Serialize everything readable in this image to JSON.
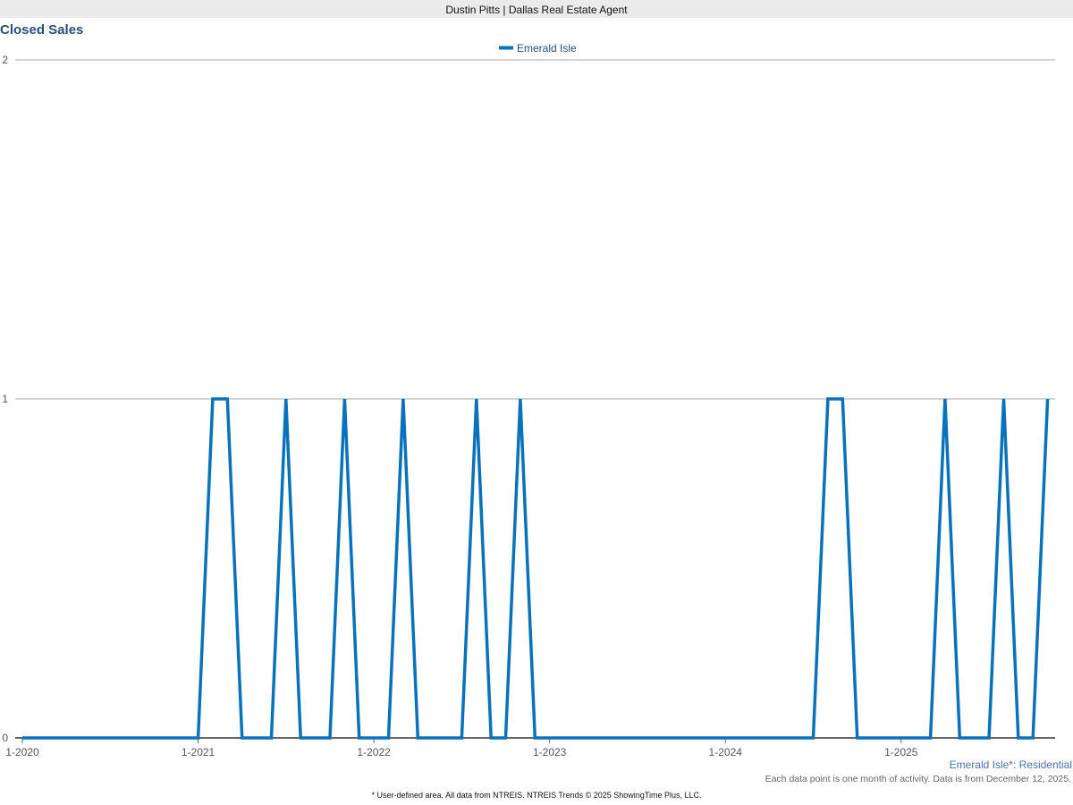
{
  "header": {
    "site_title": "Dustin Pitts | Dallas Real Estate Agent"
  },
  "chart_data": {
    "type": "line",
    "title": "Closed Sales",
    "legend_position": "top",
    "series": [
      {
        "name": "Emerald Isle",
        "color": "#0a72ba",
        "start": "1-2020",
        "values": [
          0,
          0,
          0,
          0,
          0,
          0,
          0,
          0,
          0,
          0,
          0,
          0,
          0,
          1,
          1,
          0,
          0,
          0,
          1,
          0,
          0,
          0,
          1,
          0,
          0,
          0,
          1,
          0,
          0,
          0,
          0,
          1,
          0,
          0,
          1,
          0,
          0,
          0,
          0,
          0,
          0,
          0,
          0,
          0,
          0,
          0,
          0,
          0,
          0,
          0,
          0,
          0,
          0,
          0,
          0,
          1,
          1,
          0,
          0,
          0,
          0,
          0,
          0,
          1,
          0,
          0,
          0,
          1,
          0,
          0,
          1
        ]
      }
    ],
    "x_ticks": [
      "1-2020",
      "1-2021",
      "1-2022",
      "1-2023",
      "1-2024",
      "1-2025"
    ],
    "y_ticks": [
      "0",
      "1",
      "2"
    ],
    "ylim": [
      0,
      2
    ],
    "grid": true
  },
  "footer": {
    "area_label": "Emerald Isle*: Residential",
    "note": "Each data point is one month of activity. Data is from December 12, 2025.",
    "source": "* User-defined area. All data from NTREIS. NTREIS Trends © 2025 ShowingTime Plus, LLC."
  }
}
